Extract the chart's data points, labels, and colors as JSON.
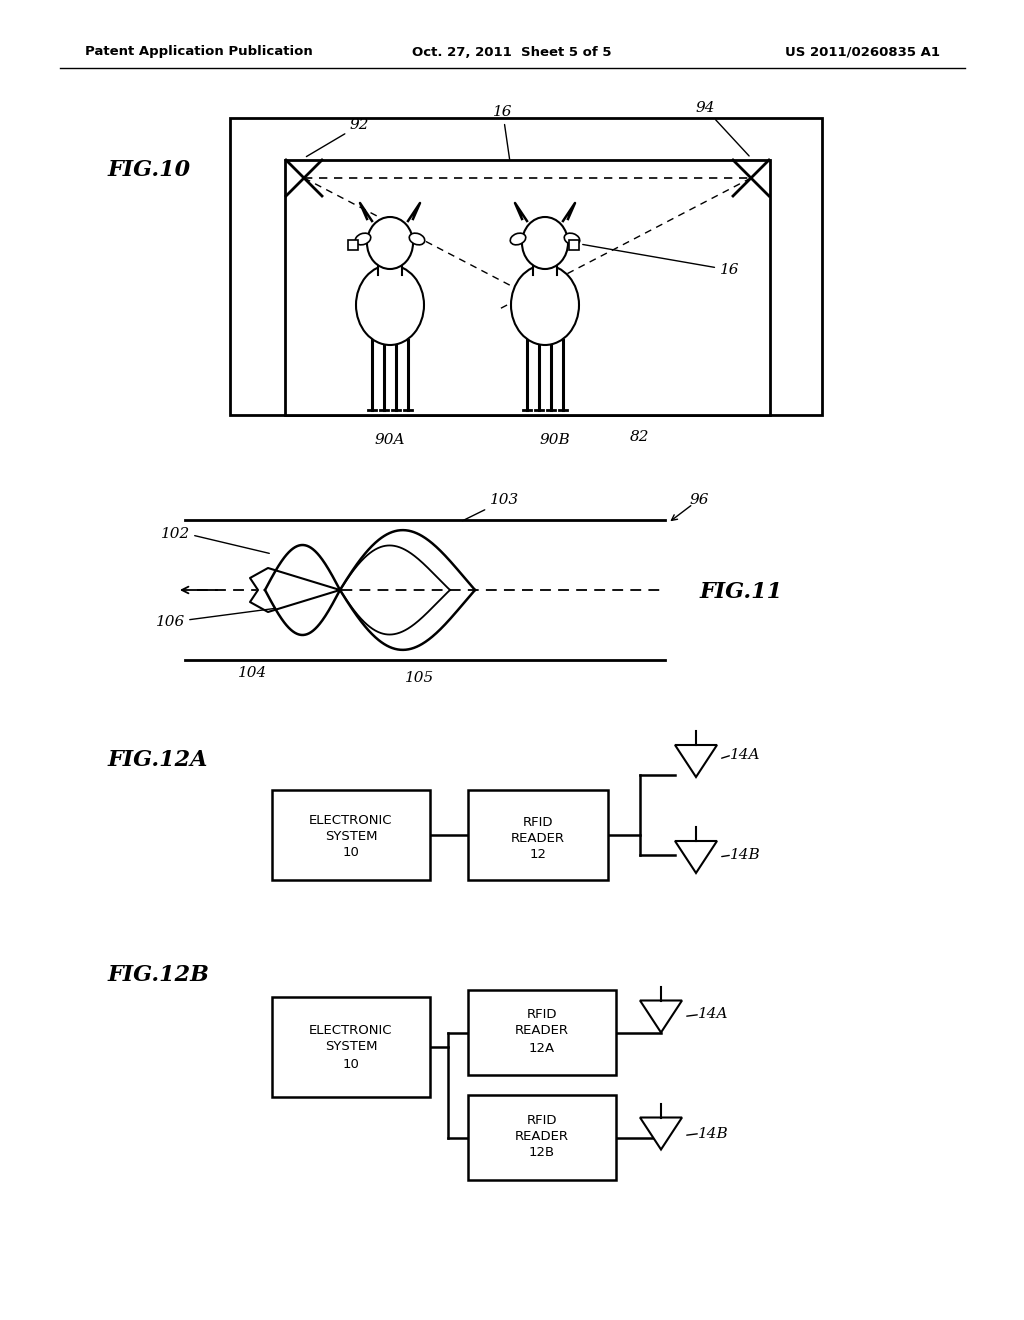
{
  "bg_color": "#ffffff",
  "lc": "#000000",
  "header_left": "Patent Application Publication",
  "header_center": "Oct. 27, 2011  Sheet 5 of 5",
  "header_right": "US 2011/0260835 A1"
}
